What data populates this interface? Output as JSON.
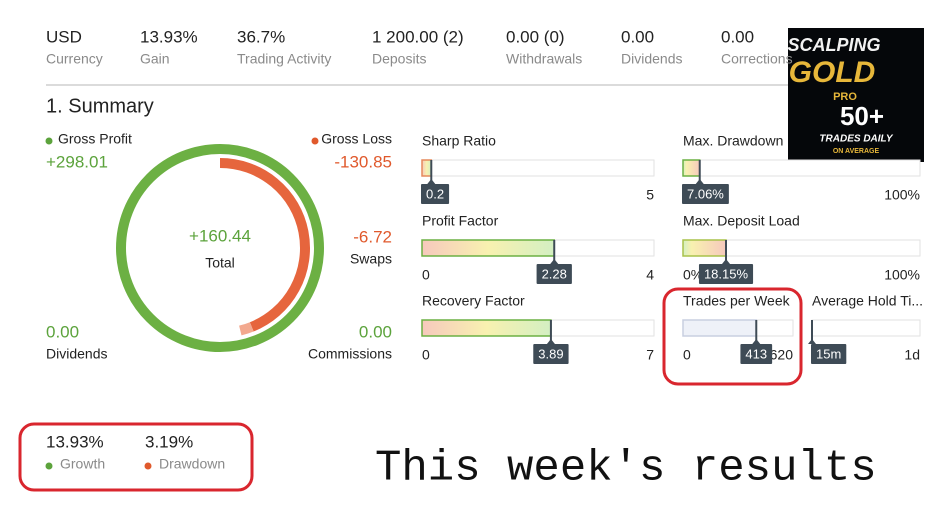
{
  "stats": [
    {
      "value": "USD",
      "label": "Currency"
    },
    {
      "value": "13.93%",
      "label": "Gain"
    },
    {
      "value": "36.7%",
      "label": "Trading Activity"
    },
    {
      "value": "1 200.00 (2)",
      "label": "Deposits"
    },
    {
      "value": "0.00 (0)",
      "label": "Withdrawals"
    },
    {
      "value": "0.00",
      "label": "Dividends"
    },
    {
      "value": "0.00",
      "label": "Corrections"
    }
  ],
  "logo": {
    "line1": "SCALPING",
    "line2": "GOLD",
    "line3": "PRO",
    "line4": "50+",
    "line5": "TRADES DAILY",
    "line6": "ON AVERAGE"
  },
  "summary": {
    "title": "1. Summary",
    "gross_profit": {
      "label": "Gross Profit",
      "value": {
        "value": 298.01,
        "label": "+298.01"
      }
    },
    "gross_loss": {
      "label": "Gross Loss",
      "value": -130.85
    },
    "total": {
      "label": "Total",
      "value": {
        "value": 160.44,
        "label": "+160.44"
      }
    },
    "swaps": {
      "label": "Swaps",
      "value": -6.72
    },
    "dividends": {
      "label": "Dividends",
      "value": "0.00"
    },
    "commissions": {
      "label": "Commissions",
      "value": "0.00"
    }
  },
  "gauges": [
    {
      "label": "Sharp Ratio",
      "min": 0,
      "max": 5,
      "value": 0.2
    },
    {
      "label": "Profit Factor",
      "min": 0,
      "max": 4,
      "value": 2.28
    },
    {
      "label": "Recovery Factor",
      "min": 0,
      "max": 7,
      "value": 3.89
    },
    {
      "label": "Max. Drawdown",
      "min": {
        "value": 0,
        "label": "0%"
      },
      "max": {
        "value": 100,
        "label": "100%"
      },
      "value": {
        "value": 7.06,
        "label": "7.06%"
      }
    },
    {
      "label": "Max. Deposit Load",
      "min": {
        "value": 0,
        "label": "0%"
      },
      "max": {
        "value": 100,
        "label": "100%"
      },
      "value": {
        "value": 18.15,
        "label": "18.15%"
      }
    },
    {
      "label": "Trades per Week",
      "min": 0,
      "max": 620,
      "value": 413
    },
    {
      "label": "Average Hold Ti...",
      "max": "1d",
      "value": "15m"
    }
  ],
  "bottom": [
    {
      "value": "13.93%",
      "label": "Growth"
    },
    {
      "value": "3.19%",
      "label": "Drawdown"
    }
  ],
  "caption": "This week's results"
}
